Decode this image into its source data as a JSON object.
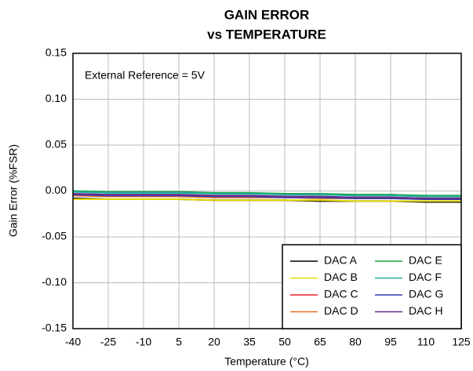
{
  "chart_data": {
    "type": "line",
    "title": [
      "GAIN ERROR",
      "vs TEMPERATURE"
    ],
    "annotation": "External Reference = 5V",
    "xlabel": "Temperature (°C)",
    "ylabel": "Gain Error (%FSR)",
    "x": [
      -40,
      -25,
      -10,
      5,
      20,
      35,
      50,
      65,
      80,
      95,
      110,
      125
    ],
    "xlim": [
      -40,
      125
    ],
    "xticks": [
      -40,
      -25,
      -10,
      5,
      20,
      35,
      50,
      65,
      80,
      95,
      110,
      125
    ],
    "ylim": [
      -0.15,
      0.15
    ],
    "yticks": [
      -0.15,
      {
        "value": -0.1,
        "label": "-0.10"
      },
      -0.05,
      {
        "value": 0,
        "label": "0.00"
      },
      0.05,
      {
        "value": 0.1,
        "label": "0.10"
      },
      0.15
    ],
    "grid": true,
    "legend": "lower right",
    "series": [
      {
        "name": "DAC A",
        "color": "#000000",
        "values": [
          -0.008,
          -0.009,
          -0.009,
          -0.009,
          -0.01,
          -0.01,
          -0.01,
          -0.011,
          -0.011,
          -0.011,
          -0.012,
          -0.012
        ]
      },
      {
        "name": "DAC B",
        "color": "#e6d800",
        "values": [
          -0.009,
          -0.009,
          -0.009,
          -0.009,
          -0.01,
          -0.01,
          -0.01,
          -0.01,
          -0.011,
          -0.011,
          -0.011,
          -0.011
        ]
      },
      {
        "name": "DAC C",
        "color": "#e8202a",
        "values": [
          -0.004,
          -0.005,
          -0.005,
          -0.005,
          -0.006,
          -0.006,
          -0.006,
          -0.007,
          -0.007,
          -0.007,
          -0.008,
          -0.008
        ]
      },
      {
        "name": "DAC D",
        "color": "#f06a20",
        "values": [
          -0.005,
          -0.006,
          -0.006,
          -0.006,
          -0.007,
          -0.007,
          -0.007,
          -0.008,
          -0.008,
          -0.008,
          -0.009,
          -0.009
        ]
      },
      {
        "name": "DAC E",
        "color": "#1aa040",
        "values": [
          0.0,
          -0.001,
          -0.001,
          -0.001,
          -0.002,
          -0.002,
          -0.003,
          -0.003,
          -0.004,
          -0.004,
          -0.005,
          -0.005
        ]
      },
      {
        "name": "DAC F",
        "color": "#20b0a0",
        "values": [
          -0.001,
          -0.002,
          -0.002,
          -0.002,
          -0.003,
          -0.003,
          -0.004,
          -0.004,
          -0.005,
          -0.005,
          -0.006,
          -0.006
        ]
      },
      {
        "name": "DAC G",
        "color": "#3040b0",
        "values": [
          -0.004,
          -0.005,
          -0.005,
          -0.005,
          -0.006,
          -0.006,
          -0.007,
          -0.007,
          -0.008,
          -0.008,
          -0.009,
          -0.009
        ]
      },
      {
        "name": "DAC H",
        "color": "#6a2a8a",
        "values": [
          -0.003,
          -0.004,
          -0.004,
          -0.004,
          -0.005,
          -0.005,
          -0.006,
          -0.006,
          -0.007,
          -0.007,
          -0.008,
          -0.008
        ]
      }
    ]
  }
}
